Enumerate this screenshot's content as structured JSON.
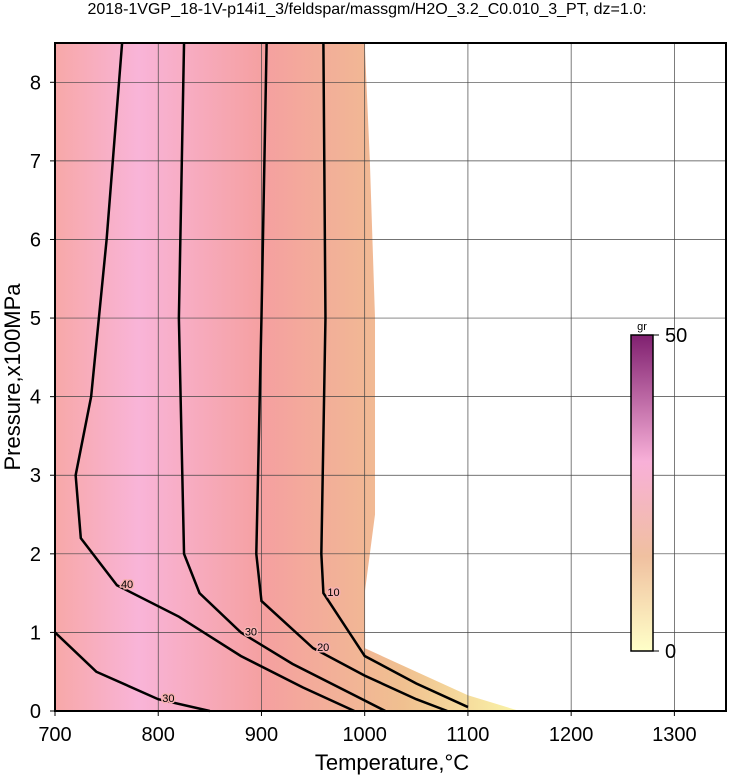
{
  "chart_data": {
    "type": "contour",
    "title": "2018-1VGP_18-1V-p14i1_3/feldspar/massgm/H2O_3.2_C0.010_3_PT, dz=1.0:",
    "x_label": "Temperature,°C",
    "y_label": "Pressure,x100MPa",
    "xlim": [
      700,
      1350
    ],
    "xticks": [
      700,
      800,
      900,
      1000,
      1100,
      1200,
      1300
    ],
    "ylim": [
      0,
      8.5
    ],
    "yticks": [
      0,
      1,
      2,
      3,
      4,
      5,
      6,
      7,
      8
    ],
    "grid": true,
    "field": {
      "x": [
        700,
        1000,
        1005,
        1010,
        1010,
        1000,
        1000,
        1050,
        1100,
        1150,
        700
      ],
      "y": [
        8.5,
        8.5,
        7,
        5,
        2.5,
        1.5,
        0.8,
        0.5,
        0.2,
        0,
        0
      ]
    },
    "contours": [
      {
        "level": 10,
        "x": [
          960,
          962,
          958,
          960,
          1000,
          1050,
          1100
        ],
        "y": [
          8.5,
          5,
          2,
          1.5,
          0.7,
          0.35,
          0.05
        ]
      },
      {
        "level": 20,
        "x": [
          905,
          900,
          895,
          900,
          950,
          1000,
          1050,
          1080
        ],
        "y": [
          8.5,
          5,
          2,
          1.4,
          0.8,
          0.45,
          0.15,
          0
        ]
      },
      {
        "level": 30,
        "x": [
          825,
          820,
          825,
          840,
          880,
          930,
          990,
          1020
        ],
        "y": [
          8.5,
          5,
          2,
          1.5,
          1.0,
          0.6,
          0.2,
          0
        ]
      },
      {
        "level": 40,
        "x": [
          765,
          750,
          735,
          720,
          725,
          760,
          820,
          880,
          940,
          990
        ],
        "y": [
          8.5,
          6,
          4,
          3,
          2.2,
          1.6,
          1.2,
          0.7,
          0.3,
          0
        ]
      },
      {
        "level": 30,
        "x": [
          700,
          740,
          800,
          850
        ],
        "y": [
          1.0,
          0.5,
          0.15,
          0
        ]
      }
    ],
    "colorbar": {
      "label": "gr",
      "lim": [
        0,
        50
      ],
      "ticks": [
        0,
        50
      ]
    }
  }
}
